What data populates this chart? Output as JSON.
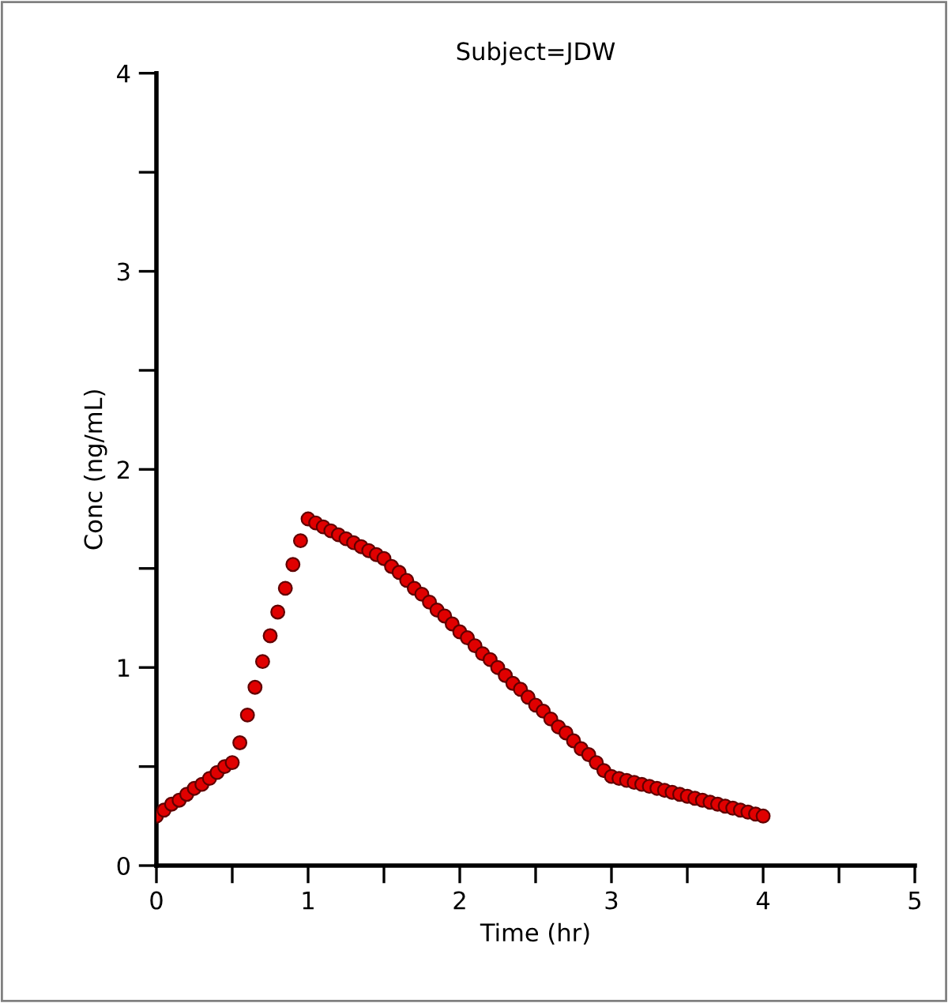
{
  "chart_data": {
    "type": "scatter",
    "title": "Subject=JDW",
    "xlabel": "Time (hr)",
    "ylabel": "Conc (ng/mL)",
    "x": [
      0,
      0.05,
      0.1,
      0.15,
      0.2,
      0.25,
      0.3,
      0.35,
      0.4,
      0.45,
      0.5,
      0.55,
      0.6,
      0.65,
      0.7,
      0.75,
      0.8,
      0.85,
      0.9,
      0.95,
      1.0,
      1.05,
      1.1,
      1.15,
      1.2,
      1.25,
      1.3,
      1.35,
      1.4,
      1.45,
      1.5,
      1.55,
      1.6,
      1.65,
      1.7,
      1.75,
      1.8,
      1.85,
      1.9,
      1.95,
      2.0,
      2.05,
      2.1,
      2.15,
      2.2,
      2.25,
      2.3,
      2.35,
      2.4,
      2.45,
      2.5,
      2.55,
      2.6,
      2.65,
      2.7,
      2.75,
      2.8,
      2.85,
      2.9,
      2.95,
      3.0,
      3.05,
      3.1,
      3.15,
      3.2,
      3.25,
      3.3,
      3.35,
      3.4,
      3.45,
      3.5,
      3.55,
      3.6,
      3.65,
      3.7,
      3.75,
      3.8,
      3.85,
      3.9,
      3.95,
      4.0
    ],
    "series": [
      {
        "color": "#e00000",
        "values": [
          0.25,
          0.28,
          0.31,
          0.33,
          0.36,
          0.39,
          0.41,
          0.44,
          0.47,
          0.5,
          0.52,
          0.62,
          0.76,
          0.9,
          1.03,
          1.16,
          1.28,
          1.4,
          1.52,
          1.64,
          1.75,
          1.73,
          1.71,
          1.69,
          1.67,
          1.65,
          1.63,
          1.61,
          1.59,
          1.57,
          1.55,
          1.51,
          1.48,
          1.44,
          1.4,
          1.37,
          1.33,
          1.29,
          1.26,
          1.22,
          1.18,
          1.15,
          1.11,
          1.07,
          1.04,
          1.0,
          0.96,
          0.92,
          0.89,
          0.85,
          0.81,
          0.78,
          0.74,
          0.7,
          0.67,
          0.63,
          0.59,
          0.56,
          0.52,
          0.48,
          0.45,
          0.44,
          0.43,
          0.42,
          0.41,
          0.4,
          0.39,
          0.38,
          0.37,
          0.36,
          0.35,
          0.34,
          0.33,
          0.32,
          0.31,
          0.3,
          0.29,
          0.28,
          0.27,
          0.26,
          0.25
        ]
      }
    ],
    "marker": "circle",
    "grid": false,
    "legend": false,
    "xlim": [
      0,
      5
    ],
    "ylim": [
      0,
      4
    ],
    "xticks": [
      0,
      {
        "value": 0.5,
        "label": null
      },
      1,
      {
        "value": 1.5,
        "label": null
      },
      2,
      {
        "value": 2.5,
        "label": null
      },
      3,
      {
        "value": 3.5,
        "label": null
      },
      4,
      {
        "value": 4.5,
        "label": null
      },
      5
    ],
    "yticks": [
      0,
      {
        "value": 0.5,
        "label": null
      },
      1,
      {
        "value": 1.5,
        "label": null
      },
      2,
      {
        "value": 2.5,
        "label": null
      },
      3,
      {
        "value": 3.5,
        "label": null
      },
      4
    ]
  }
}
